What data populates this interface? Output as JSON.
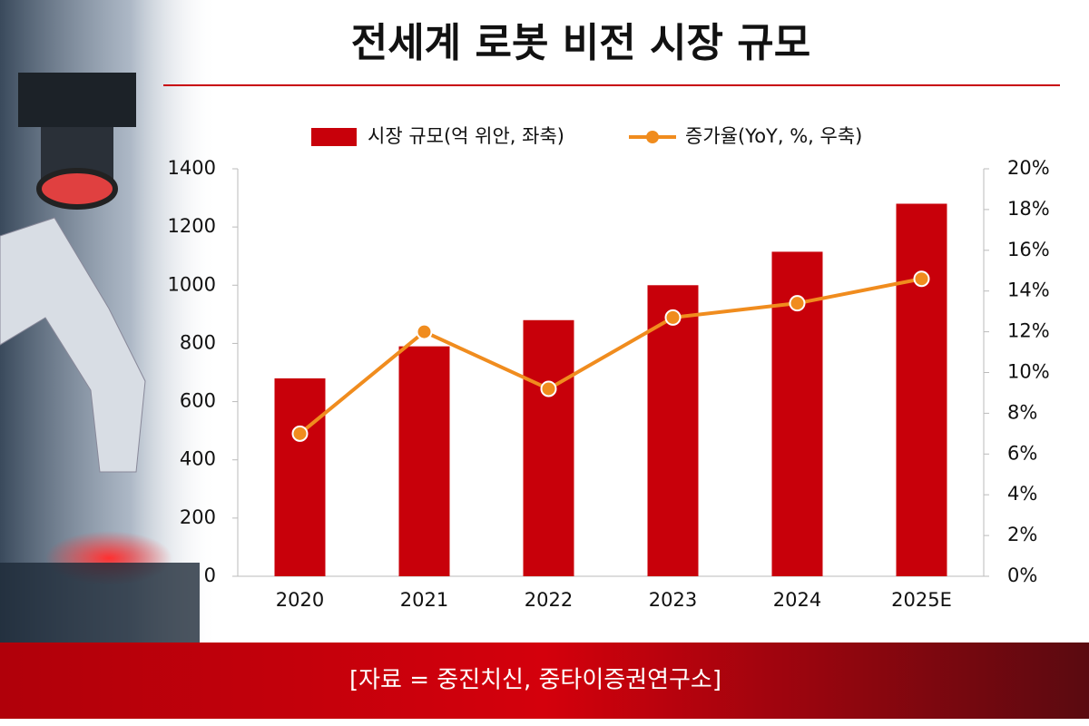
{
  "chart_data": {
    "type": "bar-line",
    "title": "전세계 로봇 비전 시장 규모",
    "categories": [
      "2020",
      "2021",
      "2022",
      "2023",
      "2024",
      "2025E"
    ],
    "series": [
      {
        "name": "시장 규모(억 위안, 좌축)",
        "type": "bar",
        "color": "#c8000a",
        "values": [
          680,
          790,
          880,
          1000,
          1115,
          1280
        ]
      },
      {
        "name": "증가율(YoY, %, 우축)",
        "type": "line",
        "color": "#f08c1e",
        "axis": "y2",
        "values": [
          7.0,
          12.0,
          9.2,
          12.7,
          13.4,
          14.6
        ]
      }
    ],
    "ylim": [
      0,
      1400
    ],
    "yticks": [
      0,
      200,
      400,
      600,
      800,
      1000,
      1200,
      1400
    ],
    "y2lim": [
      0,
      20
    ],
    "y2ticks": [
      {
        "value": 0,
        "label": "0%"
      },
      {
        "value": 2,
        "label": "2%"
      },
      {
        "value": 4,
        "label": "4%"
      },
      {
        "value": 6,
        "label": "6%"
      },
      {
        "value": 8,
        "label": "8%"
      },
      {
        "value": 10,
        "label": "10%"
      },
      {
        "value": 12,
        "label": "12%"
      },
      {
        "value": 14,
        "label": "14%"
      },
      {
        "value": 16,
        "label": "16%"
      },
      {
        "value": 18,
        "label": "18%"
      },
      {
        "value": 20,
        "label": "20%"
      }
    ],
    "source": "[자료 = 중진치신, 중타이증권연구소]"
  }
}
